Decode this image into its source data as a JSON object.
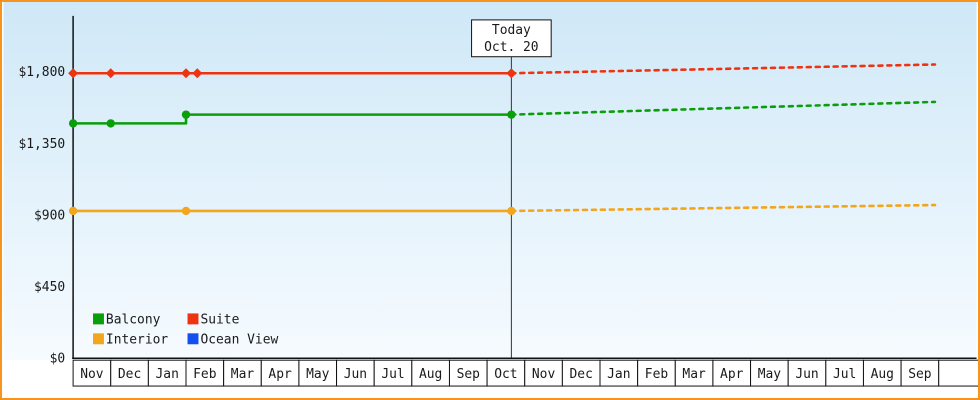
{
  "window": {
    "type": "cruise-price-history-chart"
  },
  "chart": {
    "colors": {
      "frame_border": "#f7941e",
      "bg_top": "#cfe8f7",
      "bg_bottom": "#f6fbff",
      "axis": "#111111",
      "cell_bg": "#ffffff",
      "cell_border": "#111111",
      "text": "#1a1a1a",
      "today_line": "#333333",
      "today_box_bg": "#ffffff"
    }
  },
  "chart_data": {
    "type": "line",
    "title": "",
    "xlabel": "",
    "ylabel": "",
    "grid": false,
    "legend_position": "bottom-left",
    "x_months": [
      "Nov",
      "Dec",
      "Jan",
      "Feb",
      "Mar",
      "Apr",
      "May",
      "Jun",
      "Jul",
      "Aug",
      "Sep",
      "Oct",
      "Nov",
      "Dec",
      "Jan",
      "Feb",
      "Mar",
      "Apr",
      "May",
      "Jun",
      "Jul",
      "Aug",
      "Sep"
    ],
    "y_ticks": [
      {
        "label": "$0",
        "value": 0
      },
      {
        "label": "$450",
        "value": 450
      },
      {
        "label": "$900",
        "value": 900
      },
      {
        "label": "$1,350",
        "value": 1350
      },
      {
        "label": "$1,800",
        "value": 1800
      }
    ],
    "ylim": [
      0,
      2150
    ],
    "today": {
      "line1": "Today",
      "line2": "Oct. 20",
      "month_index": 11,
      "month_fraction": 0.645
    },
    "series": [
      {
        "name": "Balcony",
        "color": "#0b9e0b",
        "marker": "circle",
        "history": [
          [
            0,
            1475
          ],
          [
            1,
            1475
          ],
          [
            3,
            1475
          ],
          [
            3,
            1530
          ],
          [
            11.645,
            1530
          ]
        ],
        "markers": [
          [
            0,
            1475
          ],
          [
            1,
            1475
          ],
          [
            3,
            1530
          ],
          [
            11.645,
            1530
          ]
        ],
        "forecast": [
          [
            11.645,
            1530
          ],
          [
            22.9,
            1610
          ]
        ]
      },
      {
        "name": "Suite",
        "color": "#ee3311",
        "marker": "diamond",
        "history": [
          [
            0,
            1790
          ],
          [
            1,
            1790
          ],
          [
            11.645,
            1790
          ]
        ],
        "markers": [
          [
            0,
            1790
          ],
          [
            1,
            1790
          ],
          [
            3,
            1790
          ],
          [
            3.3,
            1790
          ],
          [
            11.645,
            1790
          ]
        ],
        "forecast": [
          [
            11.645,
            1790
          ],
          [
            22.9,
            1845
          ]
        ]
      },
      {
        "name": "Interior",
        "color": "#f2a61c",
        "marker": "circle",
        "history": [
          [
            0,
            925
          ],
          [
            11.645,
            925
          ]
        ],
        "markers": [
          [
            0,
            925
          ],
          [
            3,
            925
          ],
          [
            11.645,
            925
          ]
        ],
        "forecast": [
          [
            11.645,
            925
          ],
          [
            22.9,
            962
          ]
        ]
      },
      {
        "name": "Ocean View",
        "color": "#1450ee",
        "marker": "circle",
        "history": [],
        "markers": [],
        "forecast": []
      }
    ],
    "legend": {
      "rows": 2,
      "cols": 2,
      "order": [
        "Balcony",
        "Suite",
        "Interior",
        "Ocean View"
      ]
    }
  }
}
